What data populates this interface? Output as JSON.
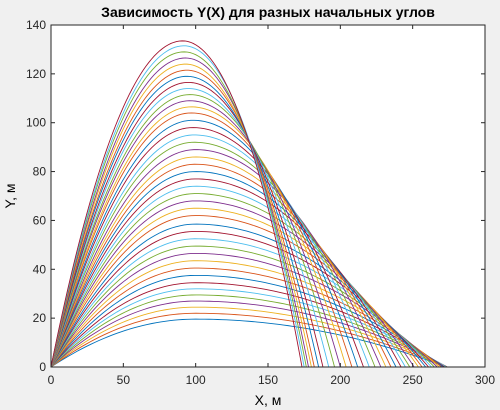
{
  "chart_data": {
    "type": "line",
    "title": "Зависимость Y(X) для разных начальных углов",
    "xlabel": "X, м",
    "ylabel": "Y, м",
    "xlim": [
      0,
      300
    ],
    "ylim": [
      0,
      140
    ],
    "xticks": [
      "0",
      "50",
      "100",
      "150",
      "200",
      "250",
      "300"
    ],
    "yticks": [
      "0",
      "20",
      "40",
      "60",
      "80",
      "100",
      "120",
      "140"
    ],
    "grid": false,
    "legend": "none",
    "series": [
      {
        "apex": [
          100,
          19.6
        ],
        "range": 273.0,
        "color": "#0072BD"
      },
      {
        "apex": [
          100,
          22.0
        ],
        "range": 273.5,
        "color": "#D95319"
      },
      {
        "apex": [
          100,
          24.5
        ],
        "range": 274.0,
        "color": "#EDB120"
      },
      {
        "apex": [
          100,
          27.0
        ],
        "range": 274.0,
        "color": "#7E2F8E"
      },
      {
        "apex": [
          100,
          29.5
        ],
        "range": 273.5,
        "color": "#77AC30"
      },
      {
        "apex": [
          100,
          32.0
        ],
        "range": 273.0,
        "color": "#4DBEEE"
      },
      {
        "apex": [
          100,
          34.5
        ],
        "range": 272.0,
        "color": "#A2142F"
      },
      {
        "apex": [
          100,
          37.5
        ],
        "range": 271.0,
        "color": "#0072BD"
      },
      {
        "apex": [
          100,
          40.5
        ],
        "range": 270.0,
        "color": "#D95319"
      },
      {
        "apex": [
          100,
          43.5
        ],
        "range": 268.5,
        "color": "#EDB120"
      },
      {
        "apex": [
          100,
          46.5
        ],
        "range": 267.0,
        "color": "#7E2F8E"
      },
      {
        "apex": [
          100,
          49.5
        ],
        "range": 265.0,
        "color": "#77AC30"
      },
      {
        "apex": [
          100,
          52.5
        ],
        "range": 263.0,
        "color": "#4DBEEE"
      },
      {
        "apex": [
          100,
          55.5
        ],
        "range": 261.0,
        "color": "#A2142F"
      },
      {
        "apex": [
          100,
          58.5
        ],
        "range": 259.0,
        "color": "#0072BD"
      },
      {
        "apex": [
          100,
          62.0
        ],
        "range": 256.5,
        "color": "#D95319"
      },
      {
        "apex": [
          100,
          65.0
        ],
        "range": 254.0,
        "color": "#EDB120"
      },
      {
        "apex": [
          100,
          68.0
        ],
        "range": 251.0,
        "color": "#7E2F8E"
      },
      {
        "apex": [
          100,
          71.0
        ],
        "range": 248.0,
        "color": "#77AC30"
      },
      {
        "apex": [
          100,
          74.0
        ],
        "range": 245.0,
        "color": "#4DBEEE"
      },
      {
        "apex": [
          100,
          77.0
        ],
        "range": 242.0,
        "color": "#A2142F"
      },
      {
        "apex": [
          100,
          80.0
        ],
        "range": 238.5,
        "color": "#0072BD"
      },
      {
        "apex": [
          100,
          83.0
        ],
        "range": 235.0,
        "color": "#D95319"
      },
      {
        "apex": [
          100,
          86.0
        ],
        "range": 231.5,
        "color": "#EDB120"
      },
      {
        "apex": [
          100,
          89.0
        ],
        "range": 228.0,
        "color": "#7E2F8E"
      },
      {
        "apex": [
          99,
          92.0
        ],
        "range": 224.0,
        "color": "#77AC30"
      },
      {
        "apex": [
          99,
          95.0
        ],
        "range": 220.0,
        "color": "#4DBEEE"
      },
      {
        "apex": [
          98,
          98.0
        ],
        "range": 216.0,
        "color": "#A2142F"
      },
      {
        "apex": [
          98,
          101.0
        ],
        "range": 212.0,
        "color": "#0072BD"
      },
      {
        "apex": [
          97,
          104.0
        ],
        "range": 208.0,
        "color": "#D95319"
      },
      {
        "apex": [
          97,
          106.5
        ],
        "range": 204.0,
        "color": "#EDB120"
      },
      {
        "apex": [
          96,
          109.0
        ],
        "range": 200.0,
        "color": "#7E2F8E"
      },
      {
        "apex": [
          96,
          111.5
        ],
        "range": 196.0,
        "color": "#77AC30"
      },
      {
        "apex": [
          95,
          114.0
        ],
        "range": 192.0,
        "color": "#4DBEEE"
      },
      {
        "apex": [
          95,
          116.5
        ],
        "range": 188.0,
        "color": "#A2142F"
      },
      {
        "apex": [
          94,
          119.0
        ],
        "range": 185.0,
        "color": "#0072BD"
      },
      {
        "apex": [
          94,
          121.5
        ],
        "range": 182.0,
        "color": "#D95319"
      },
      {
        "apex": [
          93,
          124.0
        ],
        "range": 180.0,
        "color": "#EDB120"
      },
      {
        "apex": [
          93,
          126.5
        ],
        "range": 178.0,
        "color": "#7E2F8E"
      },
      {
        "apex": [
          92,
          129.0
        ],
        "range": 176.5,
        "color": "#77AC30"
      },
      {
        "apex": [
          92,
          131.5
        ],
        "range": 175.0,
        "color": "#4DBEEE"
      },
      {
        "apex": [
          91,
          133.5
        ],
        "range": 173.5,
        "color": "#A2142F"
      }
    ]
  }
}
